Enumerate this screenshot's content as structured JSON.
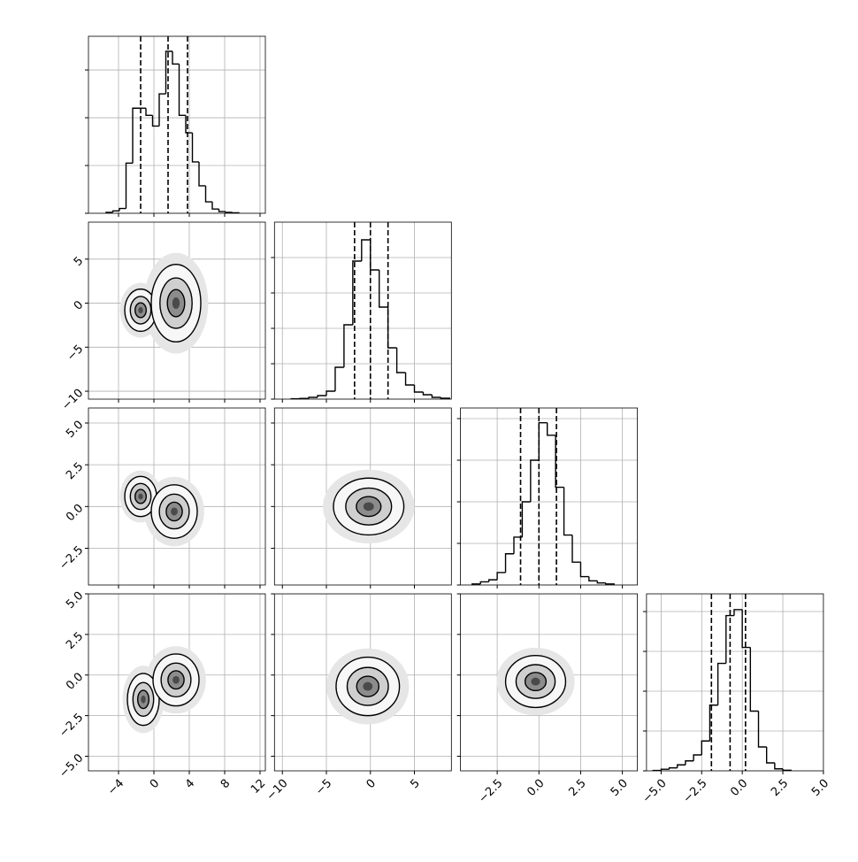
{
  "chart_data": {
    "type": "corner",
    "grid": true,
    "params": [
      {
        "lim": [
          -7.4,
          12.6
        ],
        "ticks": [
          {
            "value": -4,
            "label": "−4"
          },
          0,
          4,
          8,
          12
        ],
        "hist": {
          "bins": [
            -5.4,
            -4.65,
            -3.9,
            -3.15,
            -2.4,
            -1.65,
            -0.9,
            -0.15,
            0.6,
            1.35,
            2.1,
            2.85,
            3.6,
            4.35,
            5.1,
            5.85,
            6.6,
            7.35,
            8.1,
            8.85,
            9.6
          ],
          "counts": [
            4,
            10,
            20,
            210,
            440,
            440,
            410,
            365,
            500,
            678,
            625,
            410,
            337,
            215,
            115,
            48,
            18,
            7,
            4,
            2
          ],
          "ylim": [
            0,
            741
          ],
          "yticks": [
            0,
            200,
            400,
            600
          ],
          "quantiles": [
            -1.5,
            1.6,
            3.8
          ]
        },
        "joint": []
      },
      {
        "lim": [
          -10.9,
          9.2
        ],
        "ticks": [
          {
            "value": -10,
            "label": "−10"
          },
          {
            "value": -5,
            "label": "−5"
          },
          0,
          5
        ],
        "hist": {
          "bins": [
            -9,
            -8,
            -7,
            -6,
            -5,
            -4,
            -3,
            -2,
            -1,
            0,
            1,
            2,
            3,
            4,
            5,
            6,
            7,
            8,
            9
          ],
          "counts": [
            2,
            4,
            10,
            20,
            45,
            180,
            420,
            780,
            900,
            730,
            520,
            290,
            150,
            80,
            40,
            25,
            10,
            5
          ],
          "ylim": [
            0,
            1000
          ],
          "yticks": [
            0,
            200,
            400,
            600,
            800
          ],
          "quantiles": [
            -1.8,
            0,
            2.0
          ]
        },
        "joint": [
          {
            "components": [
              {
                "x": -1.5,
                "y": -0.8,
                "sx": 0.9,
                "sy": 1.2
              },
              {
                "x": 2.5,
                "y": 0,
                "sx": 1.4,
                "sy": 2.2
              }
            ]
          }
        ]
      },
      {
        "lim": [
          -4.7,
          5.9
        ],
        "ticks": [
          {
            "value": -2.5,
            "label": "−2.5"
          },
          {
            "value": 0,
            "label": "0.0"
          },
          2.5,
          {
            "value": 5,
            "label": "5.0"
          }
        ],
        "hist": {
          "bins": [
            -4,
            -3.5,
            -3,
            -2.5,
            -2,
            -1.5,
            -1,
            -0.5,
            0,
            0.5,
            1,
            1.5,
            2,
            2.5,
            3,
            3.5,
            4,
            4.5
          ],
          "counts": [
            5,
            15,
            25,
            60,
            150,
            230,
            400,
            600,
            780,
            720,
            470,
            240,
            110,
            40,
            20,
            10,
            5
          ],
          "ylim": [
            0,
            851
          ],
          "yticks": [
            0,
            200,
            400,
            600,
            800
          ],
          "quantiles": [
            -1.1,
            0,
            1.05
          ]
        },
        "joint": [
          {
            "components": [
              {
                "x": -1.5,
                "y": 0.6,
                "sx": 0.9,
                "sy": 0.6
              },
              {
                "x": 2.3,
                "y": -0.3,
                "sx": 1.3,
                "sy": 0.8
              }
            ]
          },
          {
            "components": [
              {
                "x": -0.2,
                "y": 0,
                "sx": 2.0,
                "sy": 0.85
              }
            ]
          }
        ]
      },
      {
        "lim": [
          -5.9,
          5.0
        ],
        "ticks": [
          {
            "value": -5,
            "label": "−5.0"
          },
          {
            "value": -2.5,
            "label": "−2.5"
          },
          {
            "value": 0,
            "label": "0.0"
          },
          2.5,
          {
            "value": 5,
            "label": "5.0"
          }
        ],
        "hist": {
          "bins": [
            -5.5,
            -5,
            -4.5,
            -4,
            -3.5,
            -3,
            -2.5,
            -2,
            -1.5,
            -1,
            -0.5,
            0,
            0.5,
            1,
            1.5,
            2,
            2.5,
            3
          ],
          "counts": [
            2,
            8,
            15,
            30,
            50,
            80,
            150,
            330,
            540,
            780,
            810,
            620,
            300,
            120,
            40,
            10,
            3
          ],
          "ylim": [
            0,
            889
          ],
          "yticks": [
            0,
            200,
            400,
            600,
            800
          ],
          "quantiles": [
            -1.9,
            -0.75,
            0.2
          ]
        },
        "joint": [
          {
            "components": [
              {
                "x": -1.2,
                "y": -1.5,
                "sx": 0.9,
                "sy": 0.8
              },
              {
                "x": 2.5,
                "y": -0.3,
                "sx": 1.3,
                "sy": 0.8
              }
            ]
          },
          {
            "components": [
              {
                "x": -0.3,
                "y": -0.7,
                "sx": 1.8,
                "sy": 0.9
              }
            ]
          },
          {
            "components": [
              {
                "x": -0.2,
                "y": -0.4,
                "sx": 0.9,
                "sy": 0.8
              }
            ]
          }
        ]
      }
    ]
  }
}
